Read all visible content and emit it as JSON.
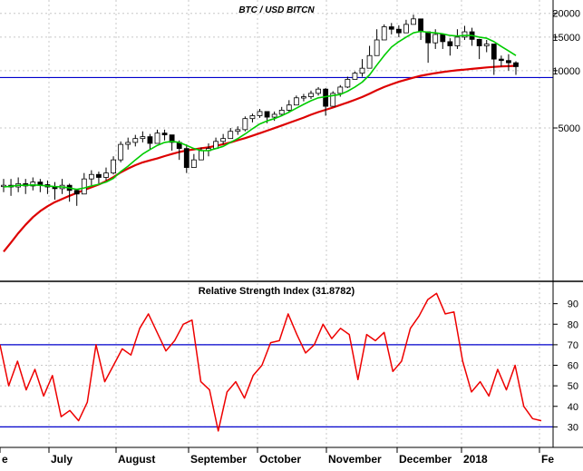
{
  "chart_data": [
    {
      "type": "candlestick",
      "title": "BTC / USD BITCN",
      "y_scale": "log",
      "y_ticks": [
        5000,
        10000,
        15000,
        20000
      ],
      "y_tick_labels": [
        "5000",
        "10000",
        "15000",
        "20000"
      ],
      "ylim": [
        800,
        23500
      ],
      "horizontal_line": 9200,
      "colors": {
        "candle": "#000000",
        "ma_short": "#00cc00",
        "ma_long": "#dd0000",
        "hline": "#0000cc",
        "grid": "#c8c8c8"
      },
      "series": [
        {
          "name": "",
          "kind": "close",
          "values": [
            2500,
            2450,
            2550,
            2480,
            2600,
            2520,
            2450,
            2400,
            2500,
            2350,
            2250,
            2700,
            2850,
            2750,
            2900,
            3400,
            4100,
            4200,
            4400,
            4500,
            4150,
            4700,
            4600,
            4200,
            3900,
            3100,
            3400,
            3800,
            3900,
            4250,
            4400,
            4800,
            4900,
            5600,
            5800,
            6100,
            5700,
            5900,
            6200,
            6600,
            7200,
            7300,
            7600,
            8000,
            6500,
            7600,
            8200,
            9000,
            9700,
            10300,
            12000,
            14500,
            17000,
            16500,
            15800,
            17500,
            18700,
            16000,
            14000,
            15500,
            14200,
            13500,
            15000,
            16000,
            14600,
            13500,
            13800,
            11500,
            11300,
            11000,
            10500
          ],
          "ranges": [
            [
              2300,
              2700
            ],
            [
              2200,
              2700
            ],
            [
              2300,
              2750
            ],
            [
              2250,
              2700
            ],
            [
              2350,
              2750
            ],
            [
              2300,
              2700
            ],
            [
              2250,
              2650
            ],
            [
              2100,
              2600
            ],
            [
              2250,
              2700
            ],
            [
              2050,
              2550
            ],
            [
              1950,
              2400
            ],
            [
              2300,
              2900
            ],
            [
              2500,
              3000
            ],
            [
              2550,
              2950
            ],
            [
              2650,
              3100
            ],
            [
              2850,
              3550
            ],
            [
              3300,
              4250
            ],
            [
              3850,
              4450
            ],
            [
              4000,
              4600
            ],
            [
              4200,
              4800
            ],
            [
              3850,
              4650
            ],
            [
              4250,
              4900
            ],
            [
              4300,
              4900
            ],
            [
              3800,
              4600
            ],
            [
              3400,
              4300
            ],
            [
              2900,
              4100
            ],
            [
              3150,
              3650
            ],
            [
              3450,
              3950
            ],
            [
              3550,
              4150
            ],
            [
              3900,
              4450
            ],
            [
              4100,
              4650
            ],
            [
              4450,
              5000
            ],
            [
              4600,
              5100
            ],
            [
              4800,
              5750
            ],
            [
              5350,
              5950
            ],
            [
              5650,
              6300
            ],
            [
              5300,
              6050
            ],
            [
              5450,
              6100
            ],
            [
              5800,
              6450
            ],
            [
              6000,
              7000
            ],
            [
              6700,
              7400
            ],
            [
              6900,
              7550
            ],
            [
              7100,
              7850
            ],
            [
              7400,
              8200
            ],
            [
              5800,
              8100
            ],
            [
              6500,
              7800
            ],
            [
              7300,
              8400
            ],
            [
              8100,
              9300
            ],
            [
              9000,
              9900
            ],
            [
              9300,
              11500
            ],
            [
              10500,
              13500
            ],
            [
              12000,
              16500
            ],
            [
              14500,
              17500
            ],
            [
              15500,
              17800
            ],
            [
              15000,
              17300
            ],
            [
              16000,
              18500
            ],
            [
              17500,
              19700
            ],
            [
              14500,
              18500
            ],
            [
              11000,
              16000
            ],
            [
              13000,
              16500
            ],
            [
              13000,
              15600
            ],
            [
              12000,
              14800
            ],
            [
              13000,
              16500
            ],
            [
              14500,
              17200
            ],
            [
              13500,
              16800
            ],
            [
              11500,
              14700
            ],
            [
              12500,
              14500
            ],
            [
              9500,
              12800
            ],
            [
              10500,
              12000
            ],
            [
              10000,
              12200
            ],
            [
              9500,
              11200
            ]
          ]
        },
        {
          "name": "",
          "kind": "moving-average-short",
          "values": [
            2450,
            2470,
            2500,
            2500,
            2510,
            2500,
            2480,
            2460,
            2450,
            2420,
            2380,
            2420,
            2480,
            2530,
            2600,
            2720,
            2950,
            3150,
            3400,
            3650,
            3850,
            4050,
            4200,
            4250,
            4200,
            4050,
            3900,
            3800,
            3800,
            3900,
            4000,
            4200,
            4400,
            4650,
            4950,
            5250,
            5450,
            5600,
            5800,
            6050,
            6350,
            6650,
            6950,
            7200,
            7300,
            7400,
            7500,
            7800,
            8200,
            8700,
            9500,
            10700,
            12000,
            13300,
            14200,
            15000,
            15800,
            16100,
            15900,
            15800,
            15600,
            15300,
            15200,
            15300,
            15300,
            15000,
            14800,
            14200,
            13400,
            12700,
            12000
          ]
        },
        {
          "name": "",
          "kind": "moving-average-long",
          "values": [
            1120,
            1250,
            1400,
            1550,
            1700,
            1830,
            1940,
            2040,
            2120,
            2200,
            2280,
            2360,
            2440,
            2520,
            2630,
            2760,
            2920,
            3060,
            3190,
            3300,
            3380,
            3460,
            3560,
            3650,
            3740,
            3810,
            3860,
            3910,
            3960,
            4030,
            4110,
            4200,
            4310,
            4420,
            4550,
            4690,
            4840,
            4990,
            5150,
            5320,
            5490,
            5670,
            5870,
            6060,
            6230,
            6400,
            6600,
            6810,
            7030,
            7270,
            7570,
            7890,
            8200,
            8480,
            8740,
            8970,
            9190,
            9400,
            9560,
            9700,
            9830,
            9950,
            10050,
            10130,
            10220,
            10310,
            10400,
            10470,
            10520,
            10560,
            10600
          ]
        }
      ]
    },
    {
      "type": "line",
      "title": "Relative Strength Index (31.8782)",
      "ylim": [
        20,
        100
      ],
      "y_ticks": [
        30,
        40,
        50,
        60,
        70,
        80,
        90
      ],
      "y_tick_labels": [
        "30",
        "40",
        "50",
        "60",
        "70",
        "80",
        "90"
      ],
      "horizontal_lines": [
        30,
        70
      ],
      "colors": {
        "line": "#ee0000",
        "hline": "#0000cc",
        "grid": "#c8c8c8"
      },
      "x_labels": [
        "e",
        "July",
        "August",
        "September",
        "October",
        "November",
        "December",
        "2018",
        "Fe"
      ],
      "series": [
        {
          "name": "",
          "values": [
            70,
            50,
            62,
            48,
            58,
            45,
            55,
            35,
            38,
            33,
            42,
            70,
            52,
            60,
            68,
            65,
            78,
            85,
            76,
            67,
            72,
            80,
            82,
            52,
            48,
            28,
            47,
            52,
            44,
            55,
            60,
            71,
            72,
            85,
            75,
            66,
            70,
            80,
            73,
            78,
            75,
            53,
            75,
            72,
            76,
            57,
            62,
            78,
            84,
            92,
            95,
            85,
            86,
            62,
            47,
            52,
            45,
            58,
            48,
            60,
            40,
            34,
            33
          ]
        }
      ]
    }
  ]
}
